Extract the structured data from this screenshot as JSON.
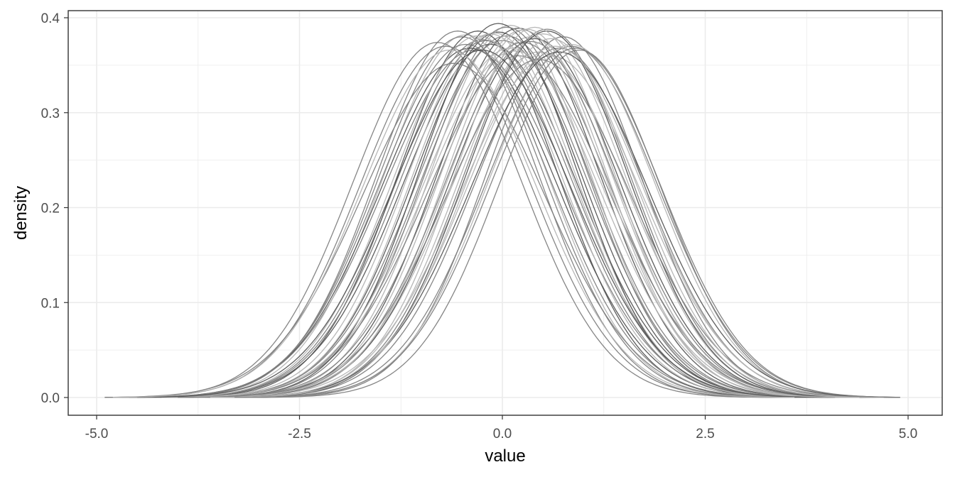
{
  "chart_data": {
    "type": "line",
    "title": "",
    "xlabel": "value",
    "ylabel": "density",
    "xlim": [
      -5.0,
      5.0
    ],
    "ylim": [
      0.0,
      0.4
    ],
    "x_ticks": [
      -5.0,
      -2.5,
      0.0,
      2.5,
      5.0
    ],
    "x_tick_labels": [
      "-5.0",
      "-2.5",
      "0.0",
      "2.5",
      "5.0"
    ],
    "y_ticks": [
      0.0,
      0.1,
      0.2,
      0.3,
      0.4
    ],
    "y_tick_labels": [
      "0.0",
      "0.1",
      "0.2",
      "0.3",
      "0.4"
    ],
    "grid": true,
    "legend": "none",
    "colors": {
      "dark": "#555555",
      "mid": "#808080",
      "light": "#b3b3b3",
      "grid": "#ebebeb",
      "panel_border": "#333333"
    },
    "series": [
      {
        "mu": -0.35,
        "sd": 1.1,
        "peak": 0.366,
        "xmin": -4.8,
        "xmax": 4.3,
        "shade": "mid"
      },
      {
        "mu": 0.55,
        "sd": 1.02,
        "peak": 0.388,
        "xmin": -3.6,
        "xmax": 4.5,
        "shade": "mid"
      },
      {
        "mu": -0.05,
        "sd": 1.03,
        "peak": 0.385,
        "xmin": -4.2,
        "xmax": 4.0,
        "shade": "dark"
      },
      {
        "mu": 0.85,
        "sd": 1.06,
        "peak": 0.37,
        "xmin": -3.4,
        "xmax": 4.9,
        "shade": "mid"
      },
      {
        "mu": -0.45,
        "sd": 1.02,
        "peak": 0.382,
        "xmin": -4.5,
        "xmax": 3.8,
        "shade": "light"
      },
      {
        "mu": 0.2,
        "sd": 1.0,
        "peak": 0.389,
        "xmin": -3.8,
        "xmax": 4.2,
        "shade": "dark"
      },
      {
        "mu": -0.25,
        "sd": 1.05,
        "peak": 0.377,
        "xmin": -4.4,
        "xmax": 3.9,
        "shade": "mid"
      },
      {
        "mu": 0.45,
        "sd": 1.08,
        "peak": 0.364,
        "xmin": -3.9,
        "xmax": 4.6,
        "shade": "light"
      },
      {
        "mu": 0.05,
        "sd": 1.04,
        "peak": 0.381,
        "xmin": -4.1,
        "xmax": 4.1,
        "shade": "mid"
      },
      {
        "mu": -0.6,
        "sd": 1.12,
        "peak": 0.352,
        "xmin": -4.9,
        "xmax": 3.7,
        "shade": "mid"
      },
      {
        "mu": 0.7,
        "sd": 1.05,
        "peak": 0.368,
        "xmin": -3.5,
        "xmax": 4.8,
        "shade": "mid"
      },
      {
        "mu": 0.35,
        "sd": 1.02,
        "peak": 0.38,
        "xmin": -3.8,
        "xmax": 4.4,
        "shade": "light"
      },
      {
        "mu": -0.15,
        "sd": 1.07,
        "peak": 0.372,
        "xmin": -4.3,
        "xmax": 4.0,
        "shade": "dark"
      },
      {
        "mu": 0.1,
        "sd": 0.98,
        "peak": 0.392,
        "xmin": -3.9,
        "xmax": 4.1,
        "shade": "light"
      },
      {
        "mu": -0.5,
        "sd": 1.03,
        "peak": 0.38,
        "xmin": -4.6,
        "xmax": 3.6,
        "shade": "mid"
      },
      {
        "mu": 0.6,
        "sd": 1.1,
        "peak": 0.36,
        "xmin": -3.7,
        "xmax": 4.9,
        "shade": "light"
      },
      {
        "mu": 0.25,
        "sd": 1.06,
        "peak": 0.374,
        "xmin": -4.0,
        "xmax": 4.5,
        "shade": "mid"
      },
      {
        "mu": -0.3,
        "sd": 0.99,
        "peak": 0.386,
        "xmin": -4.3,
        "xmax": 3.7,
        "shade": "dark"
      },
      {
        "mu": 0.95,
        "sd": 1.0,
        "peak": 0.366,
        "xmin": -3.2,
        "xmax": 4.9,
        "shade": "mid"
      },
      {
        "mu": -0.1,
        "sd": 1.01,
        "peak": 0.384,
        "xmin": -4.2,
        "xmax": 4.0,
        "shade": "light"
      },
      {
        "mu": 0.4,
        "sd": 1.04,
        "peak": 0.378,
        "xmin": -3.8,
        "xmax": 4.5,
        "shade": "dark"
      },
      {
        "mu": -0.7,
        "sd": 1.05,
        "peak": 0.37,
        "xmin": -4.8,
        "xmax": 3.5,
        "shade": "mid"
      },
      {
        "mu": 0.15,
        "sd": 1.09,
        "peak": 0.365,
        "xmin": -4.2,
        "xmax": 4.5,
        "shade": "light"
      },
      {
        "mu": 0.75,
        "sd": 0.97,
        "peak": 0.38,
        "xmin": -3.3,
        "xmax": 4.7,
        "shade": "mid"
      },
      {
        "mu": -0.2,
        "sd": 1.06,
        "peak": 0.376,
        "xmin": -4.4,
        "xmax": 4.0,
        "shade": "mid"
      },
      {
        "mu": 0.3,
        "sd": 0.99,
        "peak": 0.388,
        "xmin": -3.7,
        "xmax": 4.3,
        "shade": "light"
      },
      {
        "mu": -0.4,
        "sd": 1.08,
        "peak": 0.368,
        "xmin": -4.6,
        "xmax": 3.9,
        "shade": "dark"
      },
      {
        "mu": 0.5,
        "sd": 1.02,
        "peak": 0.383,
        "xmin": -3.6,
        "xmax": 4.6,
        "shade": "light"
      },
      {
        "mu": 0.0,
        "sd": 1.05,
        "peak": 0.376,
        "xmin": -4.2,
        "xmax": 4.2,
        "shade": "mid"
      },
      {
        "mu": 0.65,
        "sd": 1.07,
        "peak": 0.37,
        "xmin": -3.6,
        "xmax": 4.9,
        "shade": "light"
      },
      {
        "mu": -0.55,
        "sd": 1.0,
        "peak": 0.386,
        "xmin": -4.6,
        "xmax": 3.5,
        "shade": "mid"
      },
      {
        "mu": 0.2,
        "sd": 1.11,
        "peak": 0.36,
        "xmin": -4.3,
        "xmax": 4.7,
        "shade": "mid"
      },
      {
        "mu": 0.85,
        "sd": 1.03,
        "peak": 0.372,
        "xmin": -3.4,
        "xmax": 4.9,
        "shade": "light"
      },
      {
        "mu": -0.05,
        "sd": 0.97,
        "peak": 0.394,
        "xmin": -4.0,
        "xmax": 3.9,
        "shade": "dark"
      },
      {
        "mu": 0.35,
        "sd": 1.05,
        "peak": 0.375,
        "xmin": -3.9,
        "xmax": 4.5,
        "shade": "mid"
      },
      {
        "mu": -0.3,
        "sd": 1.04,
        "peak": 0.381,
        "xmin": -4.4,
        "xmax": 3.8,
        "shade": "light"
      },
      {
        "mu": 0.55,
        "sd": 1.0,
        "peak": 0.386,
        "xmin": -3.5,
        "xmax": 4.6,
        "shade": "dark"
      },
      {
        "mu": 0.1,
        "sd": 1.08,
        "peak": 0.368,
        "xmin": -4.2,
        "xmax": 4.4,
        "shade": "light"
      },
      {
        "mu": -0.8,
        "sd": 1.04,
        "peak": 0.374,
        "xmin": -4.9,
        "xmax": 3.4,
        "shade": "mid"
      },
      {
        "mu": 0.45,
        "sd": 1.12,
        "peak": 0.356,
        "xmin": -4.0,
        "xmax": 4.9,
        "shade": "mid"
      },
      {
        "mu": -0.15,
        "sd": 1.02,
        "peak": 0.383,
        "xmin": -4.2,
        "xmax": 3.9,
        "shade": "light"
      },
      {
        "mu": 0.7,
        "sd": 1.09,
        "peak": 0.364,
        "xmin": -3.7,
        "xmax": 4.9,
        "shade": "dark"
      },
      {
        "mu": 0.25,
        "sd": 1.01,
        "peak": 0.387,
        "xmin": -3.8,
        "xmax": 4.3,
        "shade": "light"
      },
      {
        "mu": -0.45,
        "sd": 1.06,
        "peak": 0.372,
        "xmin": -4.6,
        "xmax": 3.8,
        "shade": "mid"
      },
      {
        "mu": 0.05,
        "sd": 1.0,
        "peak": 0.39,
        "xmin": -4.0,
        "xmax": 4.1,
        "shade": "mid"
      },
      {
        "mu": 0.6,
        "sd": 1.03,
        "peak": 0.378,
        "xmin": -3.6,
        "xmax": 4.7,
        "shade": "light"
      },
      {
        "mu": -0.25,
        "sd": 1.09,
        "peak": 0.366,
        "xmin": -4.5,
        "xmax": 4.1,
        "shade": "dark"
      },
      {
        "mu": 0.4,
        "sd": 0.98,
        "peak": 0.39,
        "xmin": -3.6,
        "xmax": 4.4,
        "shade": "light"
      },
      {
        "mu": 0.9,
        "sd": 1.05,
        "peak": 0.368,
        "xmin": -3.3,
        "xmax": 4.9,
        "shade": "mid"
      },
      {
        "mu": -0.65,
        "sd": 1.07,
        "peak": 0.366,
        "xmin": -4.8,
        "xmax": 3.6,
        "shade": "light"
      }
    ]
  }
}
